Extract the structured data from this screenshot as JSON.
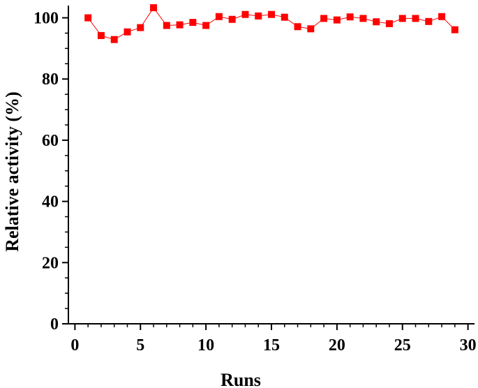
{
  "chart_data": {
    "type": "line",
    "title": "",
    "xlabel": "Runs",
    "ylabel": "Relative activity (%)",
    "xlim": [
      -0.5,
      30.5
    ],
    "ylim": [
      0,
      104
    ],
    "x_ticks": [
      0,
      5,
      10,
      15,
      20,
      25,
      30
    ],
    "x_tick_labels": [
      "0",
      "5",
      "10",
      "15",
      "20",
      "25",
      "30"
    ],
    "y_ticks": [
      0,
      20,
      40,
      60,
      80,
      100
    ],
    "y_tick_labels": [
      "0",
      "20",
      "40",
      "60",
      "80",
      "100"
    ],
    "x_minor_step": 1,
    "y_minor_step": 5,
    "grid": false,
    "legend": "none",
    "marker": "square",
    "color": "#ff0000",
    "series": [
      {
        "x": [
          1,
          2,
          3,
          4,
          5,
          6,
          7,
          8,
          9,
          10,
          11,
          12,
          13,
          14,
          15,
          16,
          17,
          18,
          19,
          20,
          21,
          22,
          23,
          24,
          25,
          26,
          27,
          28,
          29
        ],
        "values": [
          100.0,
          94.2,
          92.9,
          95.4,
          96.8,
          103.3,
          97.5,
          97.7,
          98.5,
          97.5,
          100.4,
          99.5,
          101.1,
          100.6,
          101.1,
          100.2,
          97.1,
          96.4,
          99.8,
          99.3,
          100.3,
          99.8,
          98.7,
          98.1,
          99.8,
          99.8,
          98.8,
          100.4,
          96.1
        ]
      }
    ]
  }
}
